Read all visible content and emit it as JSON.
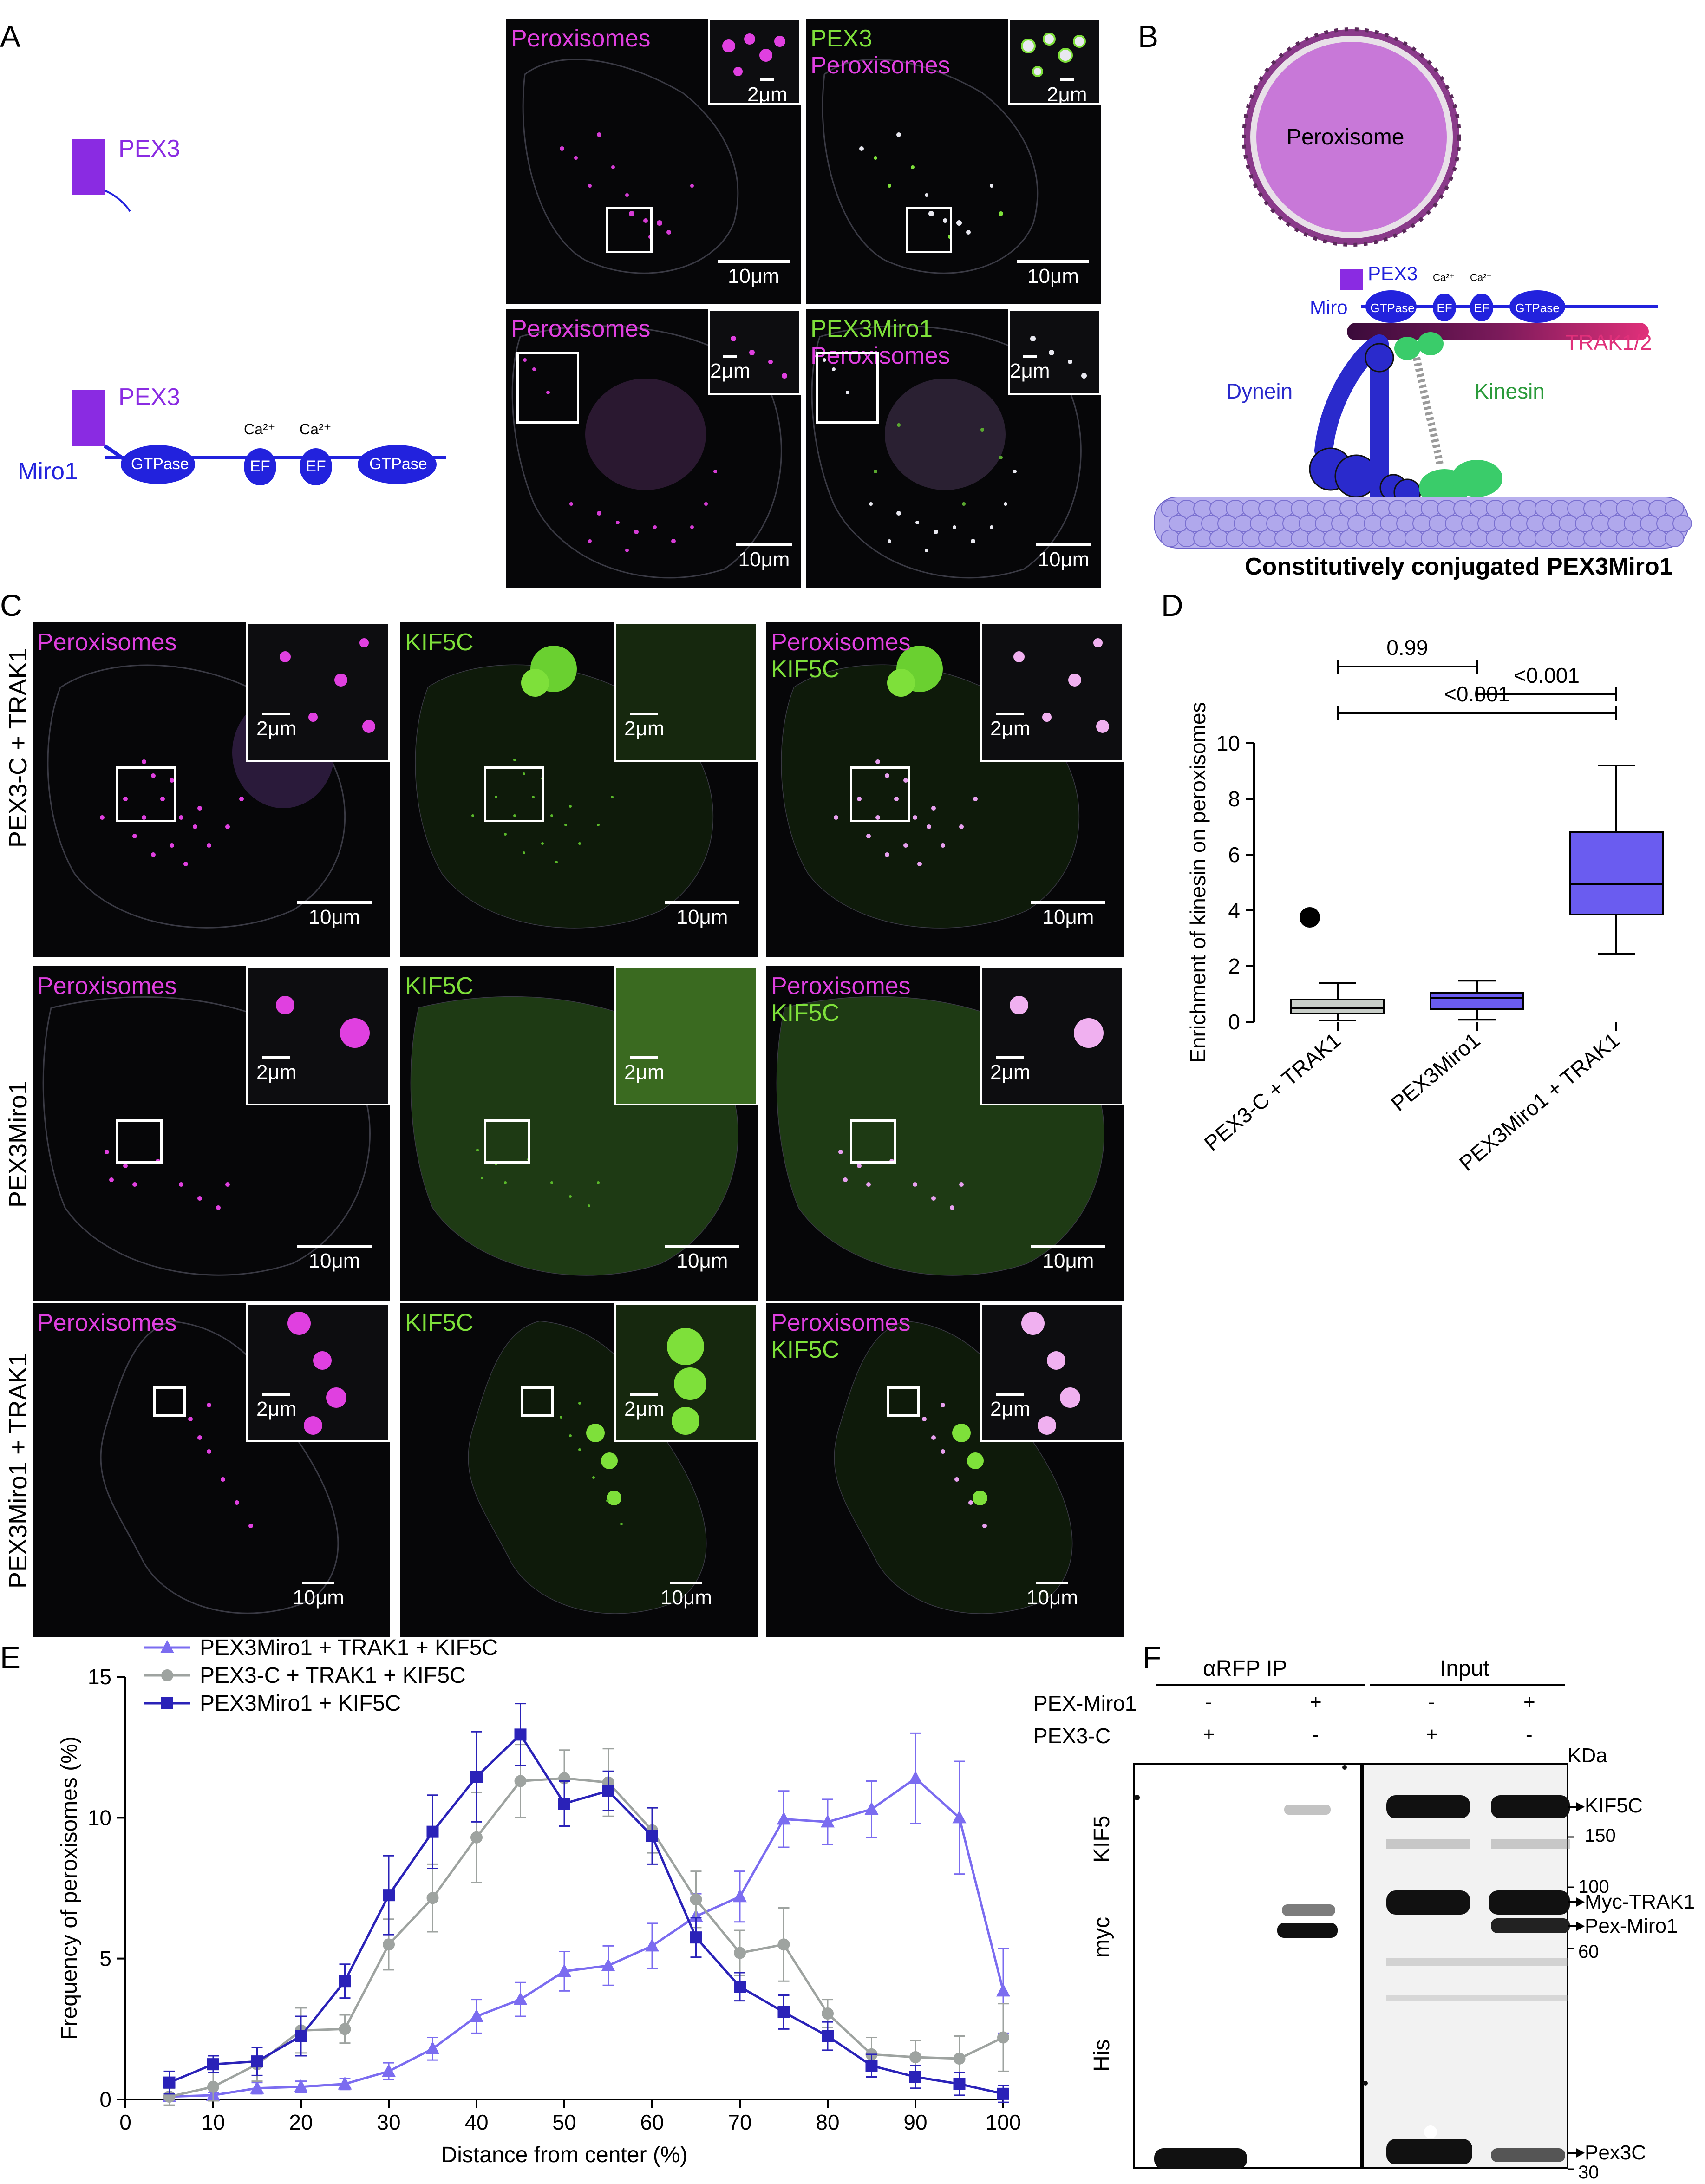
{
  "panels": {
    "A": "A",
    "B": "B",
    "C": "C",
    "D": "D",
    "E": "E",
    "F": "F"
  },
  "panelA": {
    "schematic": {
      "pex3_label": "PEX3",
      "pex3_label_2": "PEX3",
      "miro_label": "Miro1",
      "domains": [
        "GTPase",
        "EF",
        "EF",
        "GTPase"
      ],
      "ca_labels": [
        "Ca²⁺",
        "Ca²⁺"
      ]
    },
    "images": [
      {
        "label_1": "Peroxisomes",
        "label_2": "",
        "inset_scale": "2μm",
        "scale": "10μm"
      },
      {
        "label_1": "PEX3",
        "label_2": "Peroxisomes",
        "inset_scale": "2μm",
        "scale": "10μm"
      },
      {
        "label_1": "Peroxisomes",
        "label_2": "",
        "inset_scale": "2μm",
        "scale": "10μm"
      },
      {
        "label_1": "PEX3Miro1",
        "label_2": "Peroxisomes",
        "inset_scale": "2μm",
        "scale": "10μm"
      }
    ],
    "colors": {
      "magenta": "#e040e0",
      "green": "#7ee03a",
      "purple": "#8a2be2",
      "blue": "#2222dd"
    }
  },
  "panelB": {
    "peroxisome": "Peroxisome",
    "pex3": "PEX3",
    "miro": "Miro",
    "domains": [
      "GTPase",
      "EF",
      "EF",
      "GTPase"
    ],
    "ca_labels": [
      "Ca²⁺",
      "Ca²⁺"
    ],
    "trak": "TRAK1/2",
    "dynein": "Dynein",
    "kinesin": "Kinesin",
    "caption": "Constitutively conjugated PEX3Miro1"
  },
  "panelC": {
    "rows": [
      "PEX3-C + TRAK1",
      "PEX3Miro1",
      "PEX3Miro1 + TRAK1"
    ],
    "columns": [
      {
        "label_1": "Peroxisomes",
        "label_2": ""
      },
      {
        "label_1": "KIF5C",
        "label_2": ""
      },
      {
        "label_1": "Peroxisomes",
        "label_2": "KIF5C"
      }
    ],
    "inset_scale": "2μm",
    "scale": "10μm"
  },
  "panelD": {
    "chart_data": {
      "type": "box",
      "categories": [
        "PEX3-C + TRAK1",
        "PEX3Miro1",
        "PEX3Miro1 + TRAK1"
      ],
      "ylabel": "Enrichment of kinesin on peroxisomes",
      "ylim": [
        0,
        10
      ],
      "yticks": [
        0,
        2,
        4,
        6,
        8,
        10
      ],
      "boxes": [
        {
          "min": 0.05,
          "q1": 0.3,
          "median": 0.5,
          "q3": 0.8,
          "max": 1.4,
          "outliers": [
            3.75
          ],
          "color": "#c8cec8"
        },
        {
          "min": 0.08,
          "q1": 0.45,
          "median": 0.85,
          "q3": 1.05,
          "max": 1.48,
          "outliers": [],
          "color": "#6a5cf0"
        },
        {
          "min": 2.45,
          "q1": 3.85,
          "median": 4.95,
          "q3": 6.8,
          "max": 9.2,
          "outliers": [],
          "color": "#6a5cf0"
        }
      ],
      "comparisons": [
        {
          "from": 0,
          "to": 2,
          "label": "<0.001"
        },
        {
          "from": 0,
          "to": 1,
          "label": "0.99"
        },
        {
          "from": 1,
          "to": 2,
          "label": "<0.001"
        }
      ]
    }
  },
  "panelE": {
    "chart_data": {
      "type": "line",
      "xlabel": "Distance from center (%)",
      "ylabel": "Frequency of peroxisomes (%)",
      "xlim": [
        0,
        100
      ],
      "ylim": [
        0,
        15
      ],
      "xticks": [
        0,
        10,
        20,
        30,
        40,
        50,
        60,
        70,
        80,
        90,
        100
      ],
      "yticks": [
        0,
        5,
        10,
        15
      ],
      "x": [
        5,
        10,
        15,
        20,
        25,
        30,
        35,
        40,
        45,
        50,
        55,
        60,
        65,
        70,
        75,
        80,
        85,
        90,
        95,
        100
      ],
      "series": [
        {
          "name": "PEX3Miro1 + TRAK1 + KIF5C",
          "marker": "triangle",
          "color": "#7b6cf0",
          "values": [
            0.1,
            0.15,
            0.4,
            0.45,
            0.55,
            1.0,
            1.8,
            2.95,
            3.55,
            4.55,
            4.75,
            5.45,
            6.5,
            7.2,
            9.95,
            9.85,
            10.3,
            11.4,
            10.0,
            3.85
          ],
          "errors": [
            0.1,
            0.1,
            0.2,
            0.2,
            0.2,
            0.3,
            0.4,
            0.6,
            0.6,
            0.7,
            0.7,
            0.8,
            0.8,
            0.9,
            1.0,
            0.8,
            1.0,
            1.6,
            2.0,
            1.5
          ]
        },
        {
          "name": "PEX3-C + TRAK1 + KIF5C",
          "marker": "circle",
          "color": "#9ea3a0",
          "values": [
            0.1,
            0.45,
            1.25,
            2.45,
            2.5,
            5.5,
            7.15,
            9.3,
            11.3,
            11.4,
            11.25,
            9.55,
            7.1,
            5.2,
            5.5,
            3.05,
            1.6,
            1.5,
            1.45,
            2.2
          ],
          "errors": [
            0.3,
            0.5,
            0.6,
            0.8,
            0.5,
            0.9,
            1.2,
            1.6,
            1.3,
            1.0,
            1.2,
            0.8,
            1.0,
            0.8,
            1.3,
            0.5,
            0.6,
            0.6,
            0.8,
            1.2
          ]
        },
        {
          "name": "PEX3Miro1 + KIF5C",
          "marker": "square",
          "color": "#2a22b8",
          "values": [
            0.6,
            1.25,
            1.35,
            2.25,
            4.2,
            7.25,
            9.5,
            11.45,
            12.95,
            10.5,
            10.95,
            9.35,
            5.75,
            4.0,
            3.1,
            2.25,
            1.2,
            0.8,
            0.55,
            0.2
          ],
          "errors": [
            0.4,
            0.3,
            0.5,
            0.7,
            0.6,
            1.4,
            1.3,
            1.6,
            1.1,
            0.8,
            0.7,
            1.0,
            0.7,
            0.5,
            0.6,
            0.5,
            0.4,
            0.4,
            0.4,
            0.3
          ]
        }
      ]
    }
  },
  "panelF": {
    "ip_title": "αRFP IP",
    "input_title": "Input",
    "row1_label": "PEX-Miro1",
    "row2_label": "PEX3-C",
    "row1_values": [
      "-",
      "+",
      "-",
      "+"
    ],
    "row2_values": [
      "+",
      "-",
      "+",
      "-"
    ],
    "kda": "KDa",
    "blot_labels": [
      "KIF5",
      "myc",
      "His"
    ],
    "markers": [
      "150",
      "100",
      "60",
      "30"
    ],
    "bands": [
      "KIF5C",
      "Myc-TRAK1",
      "Pex-Miro1",
      "Pex3C"
    ]
  }
}
